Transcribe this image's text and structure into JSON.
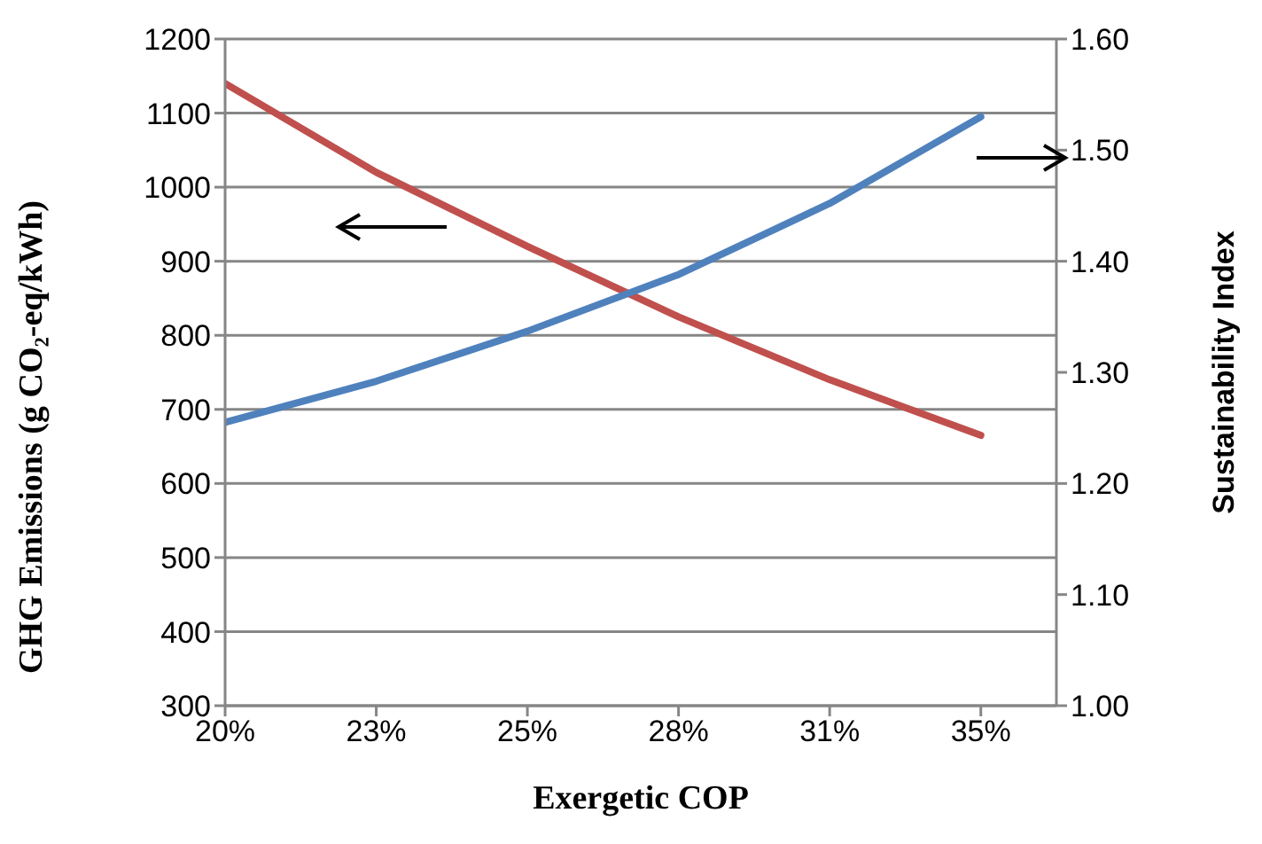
{
  "chart_data": {
    "type": "line",
    "xlabel": "Exergetic COP",
    "ylabel": "GHG Emissions (g CO₂-eq/kWh)",
    "y2label": "Sustainability Index",
    "categories": [
      "20%",
      "23%",
      "25%",
      "28%",
      "31%",
      "35%"
    ],
    "series": [
      {
        "color": "#c0504d",
        "values": [
          1140,
          1020,
          920,
          825,
          740,
          665
        ]
      },
      {
        "color": "#4f81bd",
        "axis": "y2",
        "values": [
          1.255,
          1.292,
          1.337,
          1.388,
          1.452,
          1.53
        ]
      }
    ],
    "ylim": [
      300,
      1200
    ],
    "yticks": [
      300,
      400,
      500,
      600,
      700,
      800,
      900,
      1000,
      1100,
      1200
    ],
    "y2lim": [
      1.0,
      1.6
    ],
    "y2ticks": [
      {
        "value": 1.0,
        "label": "1.00"
      },
      {
        "value": 1.1,
        "label": "1.10"
      },
      {
        "value": 1.2,
        "label": "1.20"
      },
      {
        "value": 1.3,
        "label": "1.30"
      },
      {
        "value": 1.4,
        "label": "1.40"
      },
      {
        "value": 1.5,
        "label": "1.50"
      },
      {
        "value": 1.6,
        "label": "1.60"
      }
    ],
    "grid": "y",
    "legend": false,
    "marker": "none",
    "line_style": "solid"
  }
}
